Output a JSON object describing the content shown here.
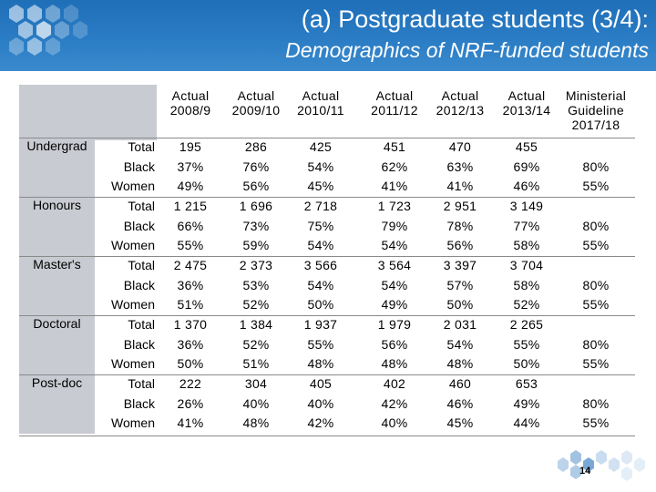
{
  "title": "(a) Postgraduate students (3/4):",
  "subtitle": "Demographics of NRF-funded students",
  "page_number": "14",
  "colors": {
    "header_blue": "#2a7cc4",
    "label_grey": "#c9cbd2"
  },
  "columns": [
    [
      "Actual",
      "2008/9"
    ],
    [
      "Actual",
      "2009/10"
    ],
    [
      "Actual",
      "2010/11"
    ],
    [
      "Actual",
      "2011/12"
    ],
    [
      "Actual",
      "2012/13"
    ],
    [
      "Actual",
      "2013/14"
    ],
    [
      "Ministerial",
      "Guideline",
      "2017/18"
    ]
  ],
  "groups": [
    {
      "name": "Undergrad",
      "rows": [
        {
          "label": "Total",
          "values": [
            "195",
            "286",
            "425",
            "451",
            "470",
            "455",
            ""
          ]
        },
        {
          "label": "Black",
          "values": [
            "37%",
            "76%",
            "54%",
            "62%",
            "63%",
            "69%",
            "80%"
          ]
        },
        {
          "label": "Women",
          "values": [
            "49%",
            "56%",
            "45%",
            "41%",
            "41%",
            "46%",
            "55%"
          ]
        }
      ]
    },
    {
      "name": "Honours",
      "rows": [
        {
          "label": "Total",
          "values": [
            "1 215",
            "1 696",
            "2 718",
            "1 723",
            "2 951",
            "3 149",
            ""
          ]
        },
        {
          "label": "Black",
          "values": [
            "66%",
            "73%",
            "75%",
            "79%",
            "78%",
            "77%",
            "80%"
          ]
        },
        {
          "label": "Women",
          "values": [
            "55%",
            "59%",
            "54%",
            "54%",
            "56%",
            "58%",
            "55%"
          ]
        }
      ]
    },
    {
      "name": "Master's",
      "rows": [
        {
          "label": "Total",
          "values": [
            "2 475",
            "2 373",
            "3 566",
            "3 564",
            "3 397",
            "3 704",
            ""
          ]
        },
        {
          "label": "Black",
          "values": [
            "36%",
            "53%",
            "54%",
            "54%",
            "57%",
            "58%",
            "80%"
          ]
        },
        {
          "label": "Women",
          "values": [
            "51%",
            "52%",
            "50%",
            "49%",
            "50%",
            "52%",
            "55%"
          ]
        }
      ]
    },
    {
      "name": "Doctoral",
      "rows": [
        {
          "label": "Total",
          "values": [
            "1 370",
            "1 384",
            "1 937",
            "1 979",
            "2 031",
            "2 265",
            ""
          ]
        },
        {
          "label": "Black",
          "values": [
            "36%",
            "52%",
            "55%",
            "56%",
            "54%",
            "55%",
            "80%"
          ]
        },
        {
          "label": "Women",
          "values": [
            "50%",
            "51%",
            "48%",
            "48%",
            "48%",
            "50%",
            "55%"
          ]
        }
      ]
    },
    {
      "name": "Post-doc",
      "rows": [
        {
          "label": "Total",
          "values": [
            "222",
            "304",
            "405",
            "402",
            "460",
            "653",
            ""
          ]
        },
        {
          "label": "Black",
          "values": [
            "26%",
            "40%",
            "40%",
            "42%",
            "46%",
            "49%",
            "80%"
          ]
        },
        {
          "label": "Women",
          "values": [
            "41%",
            "48%",
            "42%",
            "40%",
            "45%",
            "44%",
            "55%"
          ]
        }
      ]
    }
  ]
}
